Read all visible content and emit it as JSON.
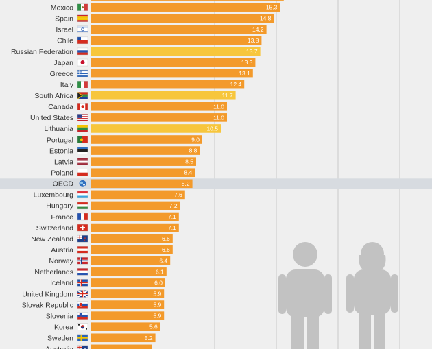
{
  "chart_data": {
    "type": "bar",
    "orientation": "horizontal",
    "grid": true,
    "legend": "none",
    "xlim": [
      0,
      30
    ],
    "categories": [
      "",
      "Mexico",
      "Spain",
      "Israel",
      "Chile",
      "Russian Federation",
      "Japan",
      "Greece",
      "Italy",
      "South Africa",
      "Canada",
      "United States",
      "Lithuania",
      "Portugal",
      "Estonia",
      "Latvia",
      "Poland",
      "OECD",
      "Luxembourg",
      "Hungary",
      "France",
      "Switzerland",
      "New Zealand",
      "Austria",
      "Norway",
      "Netherlands",
      "Iceland",
      "United Kingdom",
      "Slovak Republic",
      "Slovenia",
      "Korea",
      "Sweden",
      "Australia"
    ],
    "values": [
      15.6,
      15.3,
      14.8,
      14.2,
      13.8,
      13.7,
      13.3,
      13.1,
      12.4,
      11.7,
      11.0,
      11.0,
      10.5,
      9.0,
      8.8,
      8.5,
      8.4,
      8.2,
      7.6,
      7.2,
      7.1,
      7.1,
      6.6,
      6.6,
      6.4,
      6.1,
      6.0,
      5.9,
      5.9,
      5.9,
      5.6,
      5.2,
      4.9
    ],
    "value_labels": [
      "",
      "15.3",
      "14.8",
      "14.2",
      "13.8",
      "13.7",
      "13.3",
      "13.1",
      "12.4",
      "11.7",
      "11.0",
      "11.0",
      "10.5",
      "9.0",
      "8.8",
      "8.5",
      "8.4",
      "8.2",
      "7.6",
      "7.2",
      "7.1",
      "7.1",
      "6.6",
      "6.6",
      "6.4",
      "6.1",
      "6.0",
      "5.9",
      "5.9",
      "5.9",
      "5.6",
      "5.2",
      ""
    ],
    "highlighted": [
      "Russian Federation",
      "South Africa",
      "Lithuania"
    ],
    "benchmark": "OECD"
  },
  "colors": {
    "background": "#efefef",
    "bar": "#f39a2b",
    "bar_highlight": "#f7c63c",
    "benchmark_band": "#d7dbe0",
    "grid": "#c9c9c9",
    "icon": "#c2c2c2"
  },
  "icons": [
    "flag-icon",
    "oecd-logo-icon",
    "man-icon",
    "woman-icon"
  ]
}
